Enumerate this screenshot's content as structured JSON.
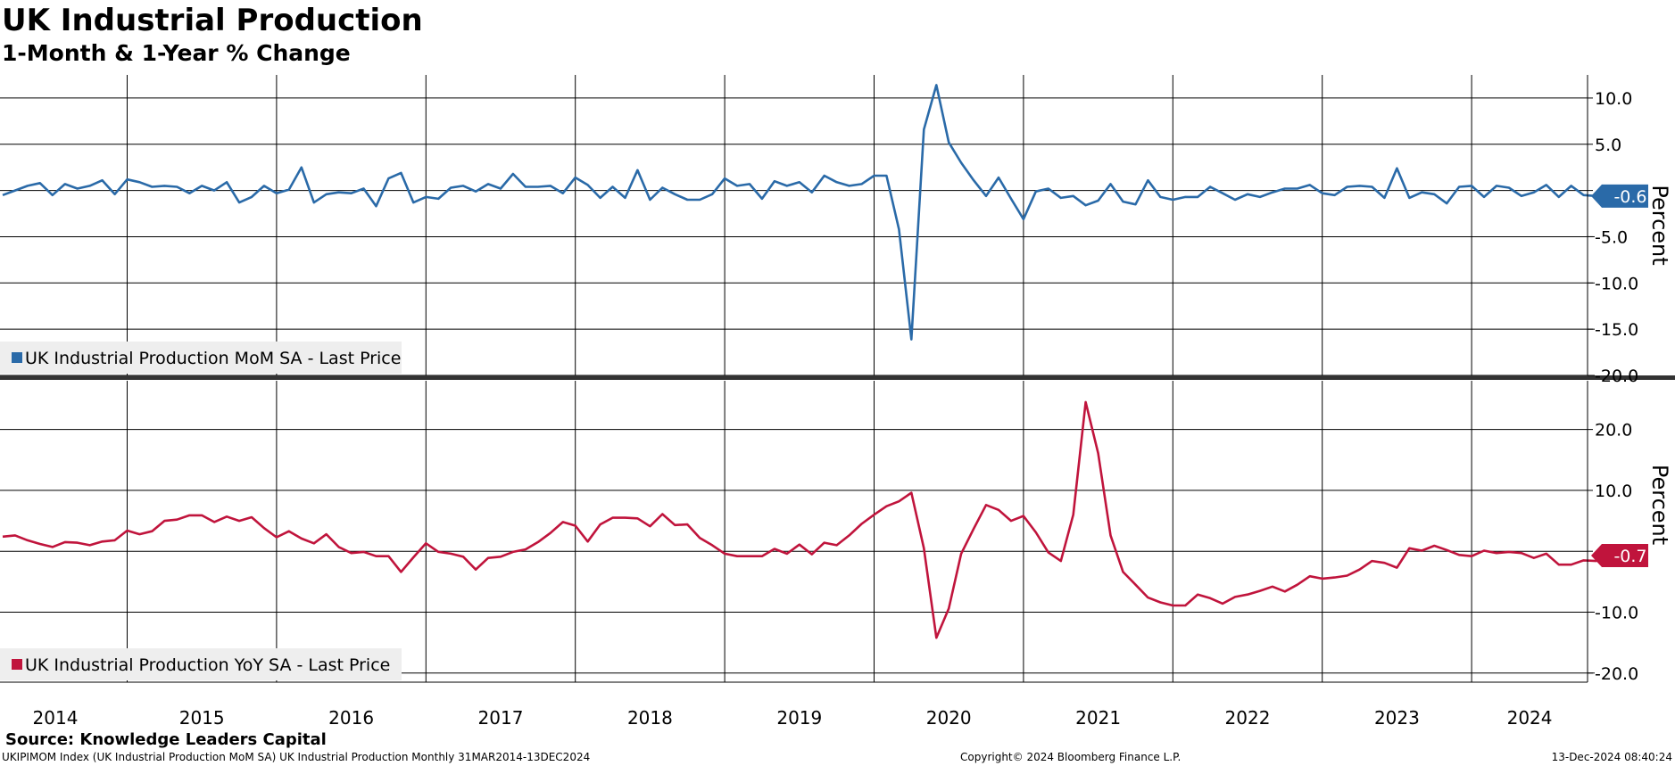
{
  "header": {
    "title": "UK Industrial Production",
    "subtitle": "1-Month & 1-Year % Change"
  },
  "footer": {
    "source": "Source: Knowledge Leaders Capital",
    "ticker_info": "UKIPIMOM Index (UK Industrial Production MoM SA) UK Industrial Production  Monthly 31MAR2014-13DEC2024",
    "copyright": "Copyright© 2024 Bloomberg Finance L.P.",
    "timestamp": "13-Dec-2024 08:40:24"
  },
  "colors": {
    "mom": "#2a6aa8",
    "yoy": "#c0143c",
    "divider": "#333333",
    "legend_bg": "#eeeeee"
  },
  "chart_data": [
    {
      "type": "line",
      "series": [
        {
          "name": "UK Industrial Production MoM SA - Last Price",
          "last_value_label": "-0.6",
          "x_start": "2014-03",
          "x_end": "2024-10",
          "values": [
            -0.5,
            0.0,
            0.5,
            0.8,
            -0.5,
            0.7,
            0.2,
            0.5,
            1.1,
            -0.4,
            1.2,
            0.9,
            0.4,
            0.5,
            0.4,
            -0.3,
            0.5,
            0.0,
            0.9,
            -1.3,
            -0.7,
            0.5,
            -0.3,
            0.1,
            2.5,
            -1.3,
            -0.4,
            -0.2,
            -0.3,
            0.2,
            -1.7,
            1.3,
            1.9,
            -1.3,
            -0.7,
            -0.9,
            0.3,
            0.5,
            -0.1,
            0.7,
            0.2,
            1.8,
            0.4,
            0.4,
            0.5,
            -0.3,
            1.4,
            0.6,
            -0.8,
            0.4,
            -0.8,
            2.2,
            -1.0,
            0.3,
            -0.4,
            -1.0,
            -1.0,
            -0.4,
            1.3,
            0.5,
            0.7,
            -0.9,
            1.0,
            0.5,
            0.9,
            -0.2,
            1.6,
            0.9,
            0.5,
            0.7,
            1.6,
            1.6,
            -4.2,
            -16.1,
            6.6,
            11.4,
            5.2,
            3.0,
            1.1,
            -0.6,
            1.4,
            -0.9,
            -3.1,
            -0.1,
            0.2,
            -0.8,
            -0.6,
            -1.6,
            -1.1,
            0.7,
            -1.2,
            -1.5,
            1.1,
            -0.7,
            -1.0,
            -0.7,
            -0.7,
            0.4,
            -0.3,
            -1.0,
            -0.4,
            -0.7,
            -0.2,
            0.2,
            0.2,
            0.6,
            -0.3,
            -0.5,
            0.4,
            0.5,
            0.4,
            -0.8,
            2.4,
            -0.8,
            -0.2,
            -0.4,
            -1.4,
            0.4,
            0.5,
            -0.7,
            0.5,
            0.3,
            -0.6,
            -0.2,
            0.6,
            -0.7,
            0.5,
            -0.5,
            -0.6
          ]
        }
      ],
      "y_axis": {
        "label": "Percent",
        "min": -20,
        "max": 12.5,
        "ticks": [
          10.0,
          5.0,
          0,
          -5.0,
          -10.0,
          -15.0,
          -20.0
        ],
        "tick_labels": [
          "10.0",
          "5.0",
          "",
          "-5.0",
          "-10.0",
          "-15.0",
          "-20.0"
        ]
      },
      "grid": true,
      "legend": "bottom-left"
    },
    {
      "type": "line",
      "series": [
        {
          "name": "UK Industrial Production YoY SA - Last Price",
          "last_value_label": "-0.7",
          "x_start": "2014-03",
          "x_end": "2024-10",
          "values": [
            2.4,
            2.6,
            1.8,
            1.2,
            0.7,
            1.5,
            1.4,
            1.0,
            1.6,
            1.8,
            3.4,
            2.8,
            3.3,
            5.0,
            5.2,
            5.9,
            5.9,
            4.8,
            5.7,
            5.0,
            5.6,
            3.8,
            2.3,
            3.3,
            2.1,
            1.3,
            2.8,
            0.7,
            -0.3,
            -0.1,
            -0.8,
            -0.8,
            -3.4,
            -1.0,
            1.3,
            -0.1,
            -0.4,
            -0.9,
            -3.0,
            -1.1,
            -0.9,
            -0.1,
            0.3,
            1.5,
            3.0,
            4.8,
            4.2,
            1.6,
            4.4,
            5.5,
            5.5,
            5.4,
            4.1,
            6.1,
            4.3,
            4.4,
            2.2,
            1.0,
            -0.4,
            -0.8,
            -0.8,
            -0.8,
            0.4,
            -0.4,
            1.1,
            -0.5,
            1.4,
            1.0,
            2.6,
            4.5,
            6.0,
            7.4,
            8.2,
            9.6,
            0.5,
            -14.2,
            -9.4,
            -0.4,
            3.7,
            7.6,
            6.8,
            5.0,
            5.8,
            3.1,
            -0.2,
            -1.6,
            6.0,
            24.5,
            16.1,
            2.6,
            -3.4,
            -5.5,
            -7.6,
            -8.4,
            -8.9,
            -8.9,
            -7.1,
            -7.7,
            -8.6,
            -7.5,
            -7.1,
            -6.5,
            -5.8,
            -6.6,
            -5.5,
            -4.1,
            -4.5,
            -4.3,
            -4.0,
            -3.0,
            -1.6,
            -1.9,
            -2.7,
            0.5,
            0.1,
            0.9,
            0.2,
            -0.6,
            -0.8,
            0.1,
            -0.3,
            -0.1,
            -0.3,
            -1.1,
            -0.4,
            -2.2,
            -2.2,
            -1.5,
            -1.6,
            -0.7
          ]
        }
      ],
      "y_axis": {
        "label": "Percent",
        "min": -21.5,
        "max": 28,
        "ticks": [
          20.0,
          10.0,
          0,
          -10.0,
          -20.0
        ],
        "tick_labels": [
          "20.0",
          "10.0",
          "",
          "-10.0",
          "-20.0"
        ]
      },
      "grid": true,
      "legend": "bottom-left"
    }
  ],
  "x_axis": {
    "year_labels": [
      "2014",
      "2015",
      "2016",
      "2017",
      "2018",
      "2019",
      "2020",
      "2021",
      "2022",
      "2023",
      "2024"
    ]
  }
}
